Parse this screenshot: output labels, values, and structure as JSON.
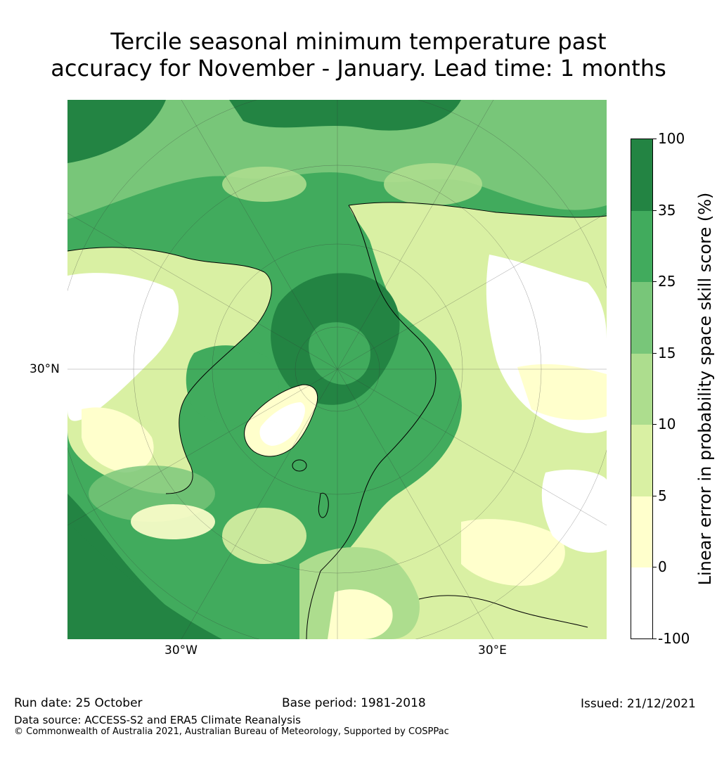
{
  "title": {
    "line1": "Tercile seasonal minimum temperature past",
    "line2": "accuracy for November - January. Lead time: 1 months"
  },
  "map": {
    "projection_description": "north-polar-stereographic",
    "lat_label": "30°N",
    "lon_labels": [
      "30°W",
      "30°E"
    ],
    "colors": {
      "ocean_dark": "#238443",
      "ocean_mid": "#41ab5d",
      "land_light": "#d9f0a3",
      "white": "#ffffff",
      "coast": "#000000"
    }
  },
  "colorbar": {
    "label": "Linear error in probability space skill score (%)",
    "ticks": [
      "100",
      "35",
      "25",
      "15",
      "10",
      "5",
      "0",
      "-100"
    ],
    "segments": [
      {
        "range": "35 to 100",
        "color": "#238443"
      },
      {
        "range": "25 to 35",
        "color": "#41ab5d"
      },
      {
        "range": "15 to 25",
        "color": "#78c679"
      },
      {
        "range": "10 to 15",
        "color": "#addd8e"
      },
      {
        "range": "5 to 10",
        "color": "#d9f0a3"
      },
      {
        "range": "0 to 5",
        "color": "#ffffcc"
      },
      {
        "range": "-100 to 0",
        "color": "#ffffff"
      }
    ]
  },
  "footer": {
    "run_date": "Run date: 25 October",
    "base_period": "Base period: 1981-2018",
    "issued": "Issued: 21/12/2021",
    "data_source": "Data source: ACCESS-S2 and ERA5 Climate Reanalysis",
    "copyright": "© Commonwealth of Australia 2021, Australian Bureau of Meteorology, Supported by COSPPac"
  }
}
